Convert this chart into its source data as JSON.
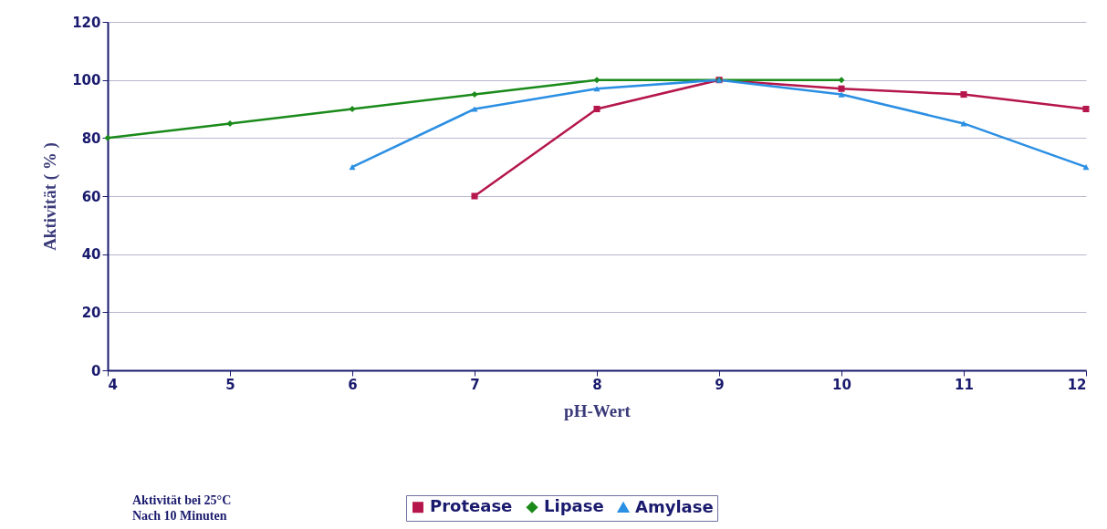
{
  "chart_data": {
    "type": "line",
    "xlabel": "pH-Wert",
    "ylabel": "Aktivität ( % )",
    "annotations": [
      "Aktivität bei 25°C",
      "Nach 10 Minuten"
    ],
    "xlim": [
      4,
      12
    ],
    "xticks": [
      4,
      5,
      6,
      7,
      8,
      9,
      10,
      11,
      12
    ],
    "ylim": [
      0,
      120
    ],
    "yticks": [
      0,
      20,
      40,
      60,
      80,
      100,
      120
    ],
    "grid": "y",
    "legend": "bottom",
    "series": [
      {
        "name": "Protease",
        "color": "#b5164b",
        "marker": "square",
        "x": [
          7,
          8,
          9,
          10,
          11,
          12
        ],
        "values": [
          60,
          90,
          100,
          97,
          95,
          90
        ]
      },
      {
        "name": "Lipase",
        "color": "#1a8a1a",
        "marker": "diamond",
        "x": [
          4,
          5,
          6,
          7,
          8,
          9,
          10
        ],
        "values": [
          80,
          85,
          90,
          95,
          100,
          100,
          100
        ]
      },
      {
        "name": "Amylase",
        "color": "#2b8fe3",
        "marker": "triangle",
        "x": [
          6,
          7,
          8,
          9,
          10,
          11,
          12
        ],
        "values": [
          70,
          90,
          97,
          100,
          95,
          85,
          70
        ]
      }
    ]
  }
}
